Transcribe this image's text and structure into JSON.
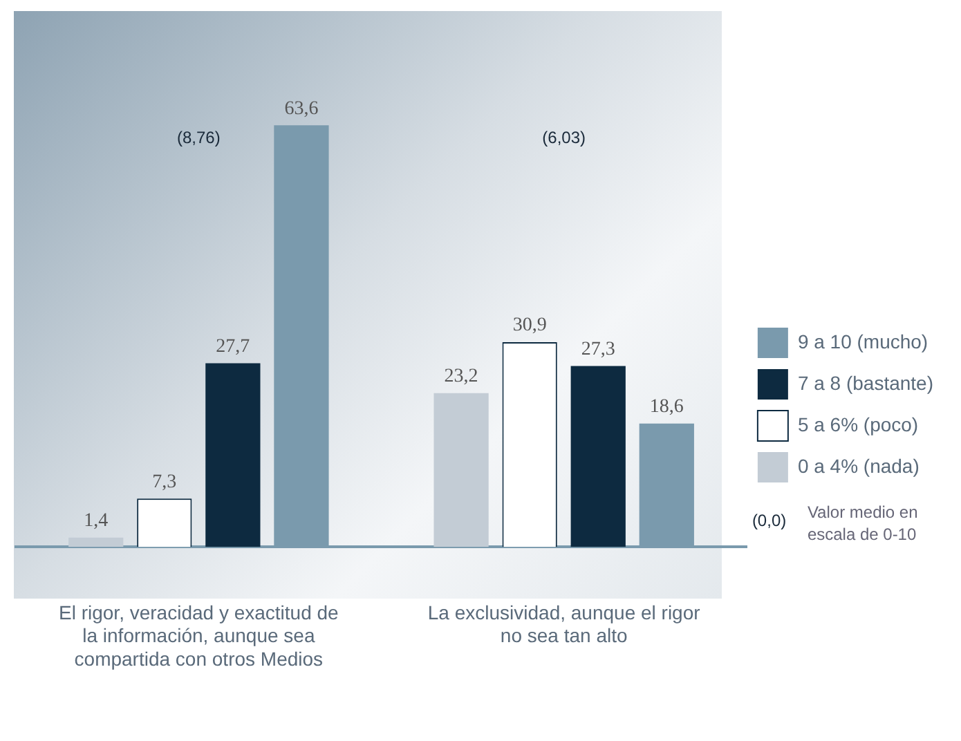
{
  "chart_data": {
    "type": "bar",
    "categories": [
      "El rigor, veracidad y exactitud de la información, aunque sea compartida con otros Medios",
      "La exclusividad, aunque el rigor no sea tan alto"
    ],
    "series": [
      {
        "name": "0 a 4% (nada)",
        "color": "#c3ccd5",
        "values": [
          1.4,
          23.2
        ],
        "value_labels": [
          "1,4",
          "23,2"
        ]
      },
      {
        "name": "5 a 6% (poco)",
        "color": "#ffffff",
        "values": [
          7.3,
          30.9
        ],
        "value_labels": [
          "7,3",
          "30,9"
        ]
      },
      {
        "name": "7 a 8 (bastante)",
        "color": "#0d2a40",
        "values": [
          27.7,
          27.3
        ],
        "value_labels": [
          "27,7",
          "27,3"
        ]
      },
      {
        "name": "9 a 10 (mucho)",
        "color": "#7a9aad",
        "values": [
          63.6,
          18.6
        ],
        "value_labels": [
          "63,6",
          "18,6"
        ]
      }
    ],
    "annotations": [
      "(8,76)",
      "(6,03)",
      "(0,0) Valor medio en escala de 0-10"
    ],
    "legend": "right",
    "grid": false
  }
}
